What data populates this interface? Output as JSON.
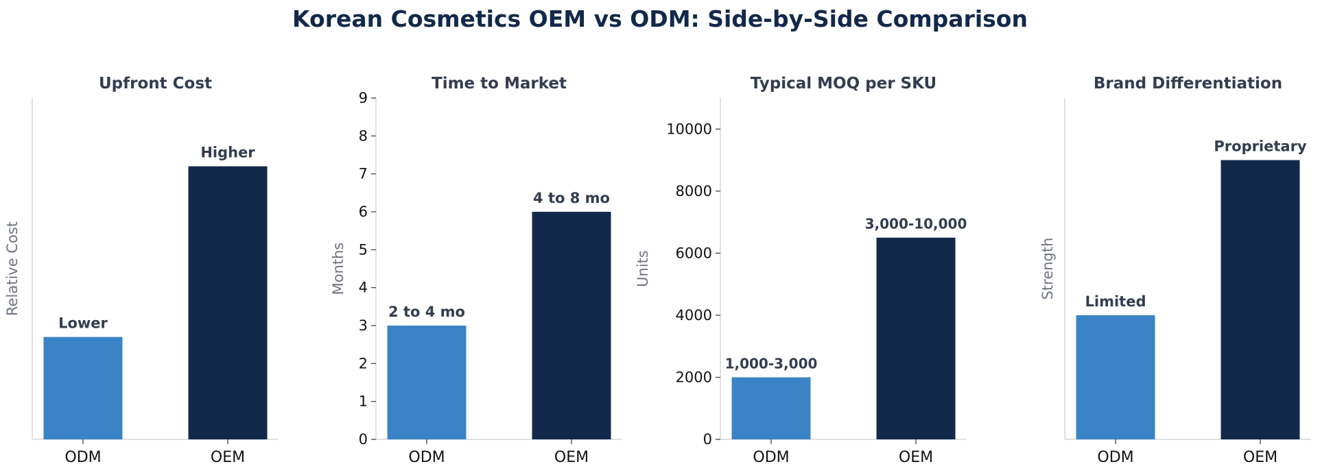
{
  "figure": {
    "title": "Korean Cosmetics OEM vs ODM: Side-by-Side Comparison"
  },
  "colors": {
    "odm": "#3a84c6",
    "oem": "#12294a",
    "title": "#12294a",
    "panel_title": "#333d4f",
    "axis_label": "#6e7480",
    "axis_line": "#d3d7dc",
    "tick_text": "#111111"
  },
  "chart_data": [
    {
      "type": "bar",
      "title": "Upfront Cost",
      "ylabel": "Relative Cost",
      "categories": [
        "ODM",
        "OEM"
      ],
      "values": [
        3,
        8
      ],
      "data_labels": [
        "Lower",
        "Higher"
      ],
      "ylim": [
        0,
        10
      ],
      "yticks": [],
      "grid": false
    },
    {
      "type": "bar",
      "title": "Time to Market",
      "ylabel": "Months",
      "categories": [
        "ODM",
        "OEM"
      ],
      "values": [
        3,
        6
      ],
      "data_labels": [
        "2 to 4 mo",
        "4 to 8 mo"
      ],
      "ylim": [
        0,
        9
      ],
      "yticks": [
        0,
        1,
        2,
        3,
        4,
        5,
        6,
        7,
        8,
        9
      ],
      "grid": false
    },
    {
      "type": "bar",
      "title": "Typical MOQ per SKU",
      "ylabel": "Units",
      "categories": [
        "ODM",
        "OEM"
      ],
      "values": [
        2000,
        6500
      ],
      "data_labels": [
        "1,000-3,000",
        "3,000-10,000"
      ],
      "ylim": [
        0,
        11000
      ],
      "yticks": [
        0,
        2000,
        4000,
        6000,
        8000,
        10000
      ],
      "grid": false
    },
    {
      "type": "bar",
      "title": "Brand Differentiation",
      "ylabel": "Strength",
      "categories": [
        "ODM",
        "OEM"
      ],
      "values": [
        4,
        9
      ],
      "data_labels": [
        "Limited",
        "Proprietary"
      ],
      "ylim": [
        0,
        11
      ],
      "yticks": [],
      "grid": false
    }
  ]
}
